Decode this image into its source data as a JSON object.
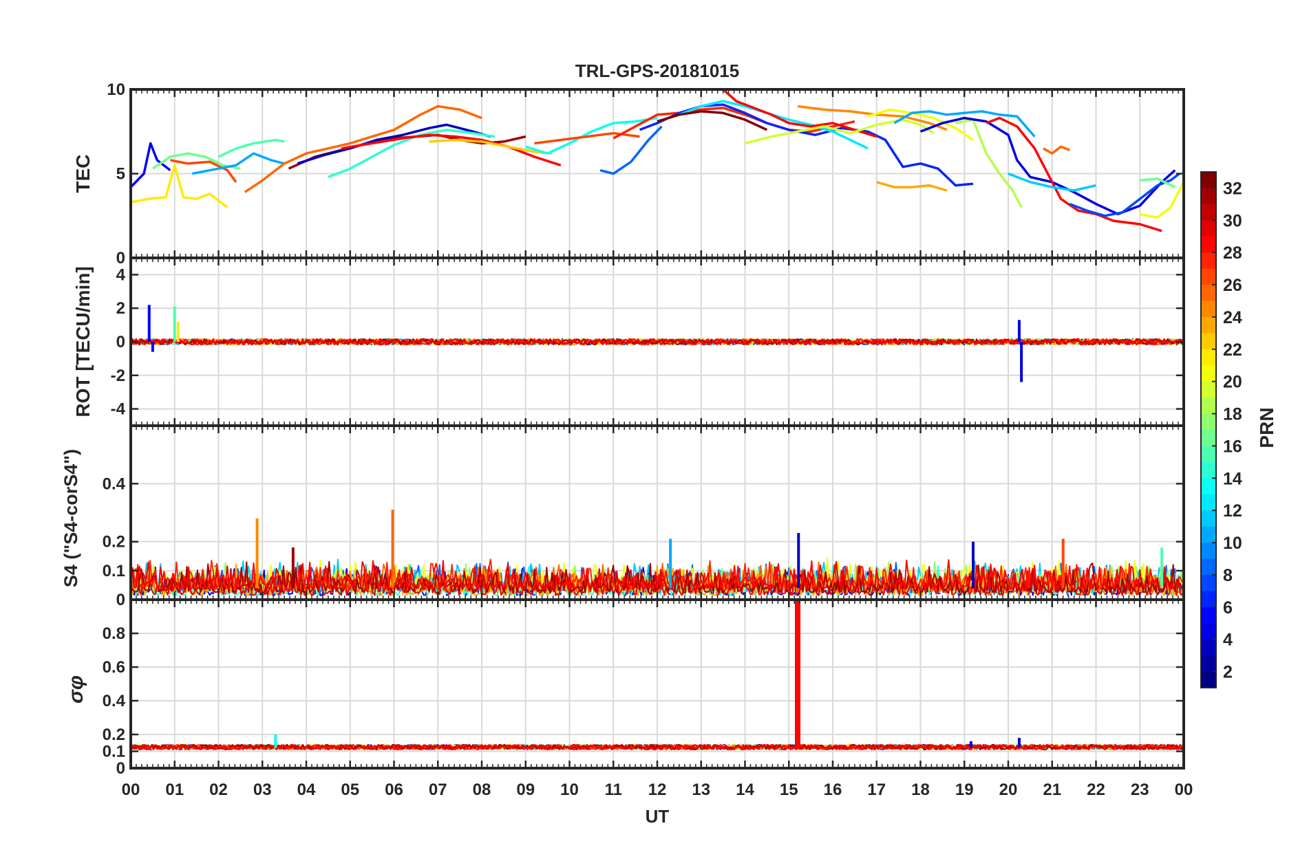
{
  "chart_data": {
    "type": "line",
    "title": "TRL-GPS-20181015",
    "xlabel": "UT",
    "xlim": [
      0,
      24
    ],
    "x_tick_labels": [
      "00",
      "01",
      "02",
      "03",
      "04",
      "05",
      "06",
      "07",
      "08",
      "09",
      "10",
      "11",
      "12",
      "13",
      "14",
      "15",
      "16",
      "17",
      "18",
      "19",
      "20",
      "21",
      "22",
      "23",
      "00"
    ],
    "colorbar": {
      "label": "PRN",
      "range": [
        1,
        32
      ],
      "tick_labels": [
        "2",
        "4",
        "6",
        "8",
        "10",
        "12",
        "14",
        "16",
        "18",
        "20",
        "22",
        "24",
        "26",
        "28",
        "30",
        "32"
      ]
    },
    "panels": [
      {
        "name": "tec",
        "ylabel": "TEC",
        "ylim": [
          0,
          10
        ],
        "y_ticks": [
          0,
          5,
          10
        ],
        "y_tick_labels": [
          "0",
          "5",
          "10"
        ],
        "series": [
          {
            "prn": 5,
            "x": [
              0.0,
              0.3,
              0.45,
              0.6,
              0.9
            ],
            "y": [
              4.2,
              5.0,
              6.8,
              5.8,
              5.2
            ]
          },
          {
            "prn": 21,
            "x": [
              0.0,
              0.4,
              0.8,
              1.0,
              1.2,
              1.5,
              1.8,
              2.2
            ],
            "y": [
              3.3,
              3.5,
              3.6,
              5.5,
              3.6,
              3.5,
              3.8,
              3.0
            ]
          },
          {
            "prn": 16,
            "x": [
              0.5,
              0.9,
              1.3,
              1.7,
              2.1,
              2.5
            ],
            "y": [
              5.3,
              6.0,
              6.2,
              6.0,
              5.5,
              5.3
            ]
          },
          {
            "prn": 26,
            "x": [
              0.9,
              1.3,
              1.8,
              2.2,
              2.4
            ],
            "y": [
              5.8,
              5.6,
              5.7,
              5.2,
              4.5
            ]
          },
          {
            "prn": 10,
            "x": [
              1.4,
              2.0,
              2.4,
              2.8,
              3.2,
              3.5
            ],
            "y": [
              5.0,
              5.3,
              5.5,
              6.2,
              5.8,
              5.6
            ]
          },
          {
            "prn": 15,
            "x": [
              2.0,
              2.4,
              2.8,
              3.3,
              3.5
            ],
            "y": [
              6.0,
              6.5,
              6.8,
              7.0,
              6.9
            ]
          },
          {
            "prn": 25,
            "x": [
              2.6,
              3.0,
              3.5,
              4.0,
              4.5,
              5.0,
              5.5,
              6.0,
              6.6,
              7.0,
              7.5,
              8.0
            ],
            "y": [
              3.9,
              4.6,
              5.6,
              6.2,
              6.5,
              6.8,
              7.2,
              7.6,
              8.5,
              9.0,
              8.8,
              8.3
            ]
          },
          {
            "prn": 31,
            "x": [
              3.6,
              4.2,
              4.8,
              5.4,
              6.0,
              6.5,
              7.0,
              7.5,
              8.0,
              8.5,
              9.0
            ],
            "y": [
              5.3,
              6.0,
              6.4,
              6.8,
              7.1,
              7.2,
              7.3,
              7.0,
              6.8,
              6.9,
              7.2
            ]
          },
          {
            "prn": 3,
            "x": [
              3.8,
              4.4,
              5.0,
              5.6,
              6.2,
              6.8,
              7.2,
              7.8,
              8.2
            ],
            "y": [
              5.6,
              6.1,
              6.5,
              7.0,
              7.3,
              7.7,
              7.9,
              7.5,
              7.2
            ]
          },
          {
            "prn": 14,
            "x": [
              4.5,
              5.0,
              5.5,
              6.0,
              6.6,
              7.2,
              7.8,
              8.3
            ],
            "y": [
              4.8,
              5.3,
              6.0,
              6.7,
              7.3,
              7.6,
              7.4,
              7.2
            ]
          },
          {
            "prn": 28,
            "x": [
              4.8,
              5.5,
              6.2,
              6.8,
              7.4,
              8.0,
              8.6,
              9.2,
              9.8
            ],
            "y": [
              6.5,
              6.8,
              7.1,
              7.3,
              7.2,
              7.0,
              6.6,
              6.0,
              5.5
            ]
          },
          {
            "prn": 22,
            "x": [
              6.8,
              7.4,
              8.0,
              8.6,
              9.2,
              9.6
            ],
            "y": [
              6.9,
              7.0,
              6.9,
              6.6,
              6.3,
              6.2
            ]
          },
          {
            "prn": 13,
            "x": [
              9.0,
              9.5,
              10.0,
              10.5,
              11.0,
              11.5,
              12.0
            ],
            "y": [
              6.6,
              6.2,
              6.8,
              7.5,
              8.0,
              8.1,
              8.3
            ]
          },
          {
            "prn": 26,
            "x": [
              9.2,
              9.8,
              10.4,
              11.0,
              11.6
            ],
            "y": [
              6.8,
              7.0,
              7.2,
              7.4,
              7.2
            ]
          },
          {
            "prn": 8,
            "x": [
              10.7,
              11.0,
              11.4,
              11.8,
              12.1
            ],
            "y": [
              5.2,
              5.0,
              5.7,
              7.0,
              7.8
            ]
          },
          {
            "prn": 27,
            "x": [
              11.0,
              11.5,
              12.0,
              12.5,
              13.0,
              13.5,
              14.0,
              14.5,
              15.0,
              15.5,
              16.0,
              16.5
            ],
            "y": [
              7.1,
              7.8,
              8.5,
              8.6,
              8.8,
              8.9,
              8.5,
              8.0,
              7.6,
              7.5,
              7.8,
              8.1
            ]
          },
          {
            "prn": 6,
            "x": [
              11.6,
              12.0,
              12.5,
              13.0,
              13.5,
              14.0,
              14.5,
              15.0,
              15.6,
              16.2,
              16.8,
              17.2,
              17.6,
              18.0,
              18.4,
              18.8,
              19.2
            ],
            "y": [
              7.6,
              8.0,
              8.6,
              9.0,
              9.1,
              8.6,
              8.0,
              7.6,
              7.3,
              7.7,
              7.5,
              7.0,
              5.4,
              5.6,
              5.3,
              4.3,
              4.4
            ]
          },
          {
            "prn": 12,
            "x": [
              12.5,
              13.0,
              13.5,
              14.0,
              14.5,
              15.0,
              15.5,
              16.0,
              16.4,
              16.8
            ],
            "y": [
              8.5,
              9.0,
              9.3,
              9.0,
              8.6,
              8.2,
              7.9,
              7.5,
              7.0,
              6.5
            ]
          },
          {
            "prn": 32,
            "x": [
              12.0,
              12.5,
              13.0,
              13.5,
              14.0,
              14.5
            ],
            "y": [
              8.1,
              8.5,
              8.7,
              8.6,
              8.2,
              7.6
            ]
          },
          {
            "prn": 28,
            "x": [
              13.5,
              13.8,
              14.2,
              14.6,
              15.0,
              15.5,
              16.0,
              16.5,
              17.0
            ],
            "y": [
              10.0,
              9.3,
              8.9,
              8.5,
              8.0,
              7.8,
              8.0,
              7.6,
              7.2
            ]
          },
          {
            "prn": 19,
            "x": [
              14.0,
              14.6,
              15.2,
              15.8,
              16.4,
              17.0,
              17.6,
              18.0,
              18.3
            ],
            "y": [
              6.8,
              7.2,
              7.5,
              7.8,
              7.4,
              7.9,
              8.2,
              7.9,
              7.4
            ]
          },
          {
            "prn": 24,
            "x": [
              15.2,
              15.8,
              16.4,
              17.0,
              17.6,
              18.2,
              18.6
            ],
            "y": [
              9.0,
              8.8,
              8.7,
              8.5,
              8.4,
              8.0,
              7.6
            ]
          },
          {
            "prn": 20,
            "x": [
              16.8,
              17.3,
              17.8,
              18.3,
              18.8,
              19.2
            ],
            "y": [
              8.4,
              8.8,
              8.6,
              8.3,
              7.7,
              7.0
            ]
          },
          {
            "prn": 23,
            "x": [
              17.0,
              17.4,
              17.8,
              18.2,
              18.6
            ],
            "y": [
              4.5,
              4.2,
              4.2,
              4.3,
              4.0
            ]
          },
          {
            "prn": 10,
            "x": [
              17.4,
              17.8,
              18.2,
              18.6,
              19.0,
              19.4,
              19.8,
              20.2,
              20.6
            ],
            "y": [
              8.0,
              8.6,
              8.7,
              8.5,
              8.6,
              8.7,
              8.5,
              8.4,
              7.2
            ]
          },
          {
            "prn": 18,
            "x": [
              18.8,
              19.2,
              19.5,
              19.8,
              20.1,
              20.3
            ],
            "y": [
              8.0,
              8.2,
              6.2,
              5.0,
              4.0,
              3.0
            ]
          },
          {
            "prn": 4,
            "x": [
              18.0,
              18.5,
              19.0,
              19.5,
              20.0,
              20.2,
              20.5,
              21.0,
              21.5,
              22.0,
              22.5,
              23.0,
              23.5,
              23.8
            ],
            "y": [
              7.5,
              8.0,
              8.3,
              8.1,
              7.3,
              5.8,
              4.8,
              4.5,
              3.9,
              3.2,
              2.6,
              3.1,
              4.5,
              5.2
            ]
          },
          {
            "prn": 28,
            "x": [
              19.5,
              19.8,
              20.2,
              20.6,
              20.9,
              21.2,
              21.6,
              22.0,
              22.4,
              23.0,
              23.5
            ],
            "y": [
              8.0,
              8.3,
              7.8,
              6.5,
              5.0,
              3.5,
              2.8,
              2.6,
              2.2,
              2.0,
              1.6
            ]
          },
          {
            "prn": 11,
            "x": [
              20.0,
              20.5,
              21.0,
              21.5,
              22.0
            ],
            "y": [
              5.0,
              4.5,
              4.2,
              4.0,
              4.3
            ]
          },
          {
            "prn": 25,
            "x": [
              20.8,
              21.0,
              21.2,
              21.4
            ],
            "y": [
              6.5,
              6.2,
              6.6,
              6.4
            ]
          },
          {
            "prn": 7,
            "x": [
              21.4,
              21.8,
              22.2,
              22.6,
              23.0,
              23.4,
              23.7,
              23.9
            ],
            "y": [
              3.2,
              2.8,
              2.5,
              2.7,
              3.5,
              4.3,
              4.6,
              5.0
            ]
          },
          {
            "prn": 20,
            "x": [
              23.0,
              23.4,
              23.7,
              24.0
            ],
            "y": [
              2.6,
              2.4,
              3.0,
              4.5
            ]
          },
          {
            "prn": 16,
            "x": [
              23.0,
              23.4,
              23.8
            ],
            "y": [
              4.6,
              4.7,
              4.2
            ]
          }
        ]
      },
      {
        "name": "rot",
        "ylabel": "ROT [TECU/min]",
        "ylim": [
          -5,
          5
        ],
        "y_ticks": [
          -4,
          -2,
          0,
          2,
          4
        ],
        "y_tick_labels": [
          "-4",
          "-2",
          "0",
          "2",
          "4"
        ],
        "spikes": [
          {
            "prn": 5,
            "x": 0.42,
            "y": 2.2
          },
          {
            "prn": 5,
            "x": 0.5,
            "y": -0.6
          },
          {
            "prn": 15,
            "x": 1.0,
            "y": 2.1
          },
          {
            "prn": 21,
            "x": 1.08,
            "y": 1.2
          },
          {
            "prn": 4,
            "x": 20.25,
            "y": 1.3
          },
          {
            "prn": 4,
            "x": 20.3,
            "y": -2.4
          }
        ]
      },
      {
        "name": "s4",
        "ylabel": "S4 (\"S4-corS4\")",
        "ylim": [
          0,
          0.6
        ],
        "y_ticks": [
          0,
          0.1,
          0.2,
          0.4
        ],
        "y_tick_labels": [
          "0",
          "0.1",
          "0.2",
          "0.4"
        ],
        "spikes": [
          {
            "prn": 24,
            "x": 2.88,
            "y": 0.28
          },
          {
            "prn": 25,
            "x": 5.97,
            "y": 0.31
          },
          {
            "prn": 10,
            "x": 12.3,
            "y": 0.21
          },
          {
            "prn": 3,
            "x": 15.22,
            "y": 0.23
          },
          {
            "prn": 26,
            "x": 21.25,
            "y": 0.21
          },
          {
            "prn": 3,
            "x": 19.2,
            "y": 0.2
          },
          {
            "prn": 15,
            "x": 23.5,
            "y": 0.18
          },
          {
            "prn": 31,
            "x": 3.7,
            "y": 0.18
          }
        ]
      },
      {
        "name": "sigma-phi",
        "ylabel": "σφ",
        "ylim": [
          0,
          1
        ],
        "y_ticks": [
          0,
          0.1,
          0.2,
          0.4,
          0.6,
          0.8
        ],
        "y_tick_labels": [
          "0",
          "0.1",
          "0.2",
          "0.4",
          "0.6",
          "0.8"
        ],
        "spikes": [
          {
            "prn": 28,
            "x": 15.2,
            "y": 1.0
          },
          {
            "prn": 13,
            "x": 3.3,
            "y": 0.2
          },
          {
            "prn": 3,
            "x": 20.25,
            "y": 0.18
          },
          {
            "prn": 3,
            "x": 19.15,
            "y": 0.16
          }
        ]
      }
    ]
  }
}
